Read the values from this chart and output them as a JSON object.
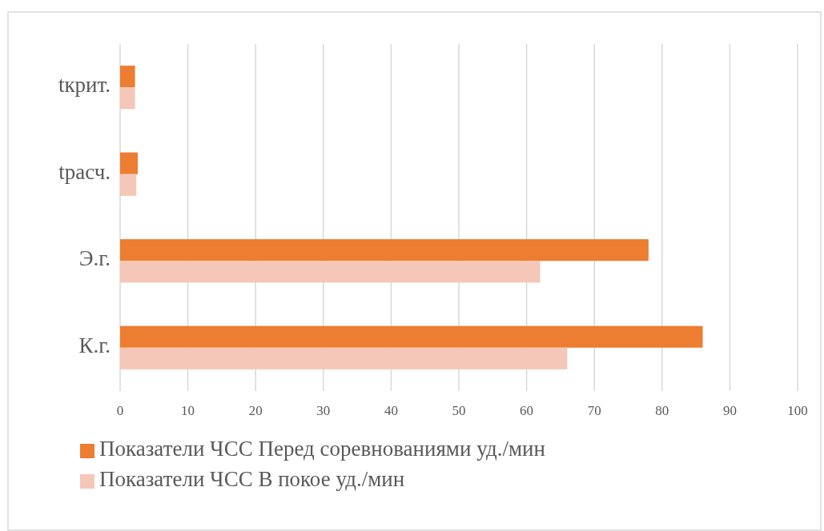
{
  "chart_data": {
    "type": "bar",
    "orientation": "horizontal",
    "categories": [
      "tкрит.",
      "tрасч.",
      "Э.г.",
      "К.г."
    ],
    "series": [
      {
        "name": "Показатели ЧСС Перед соревнованиями уд./мин",
        "color": "#ed7d31",
        "values": [
          2.2,
          2.6,
          78,
          86
        ]
      },
      {
        "name": "Показатели ЧСС В покое уд./мин",
        "color": "#f4c7b8",
        "values": [
          2.2,
          2.4,
          62,
          66
        ]
      }
    ],
    "xlim": [
      0,
      100
    ],
    "xticks": [
      0,
      10,
      20,
      30,
      40,
      50,
      60,
      70,
      80,
      90,
      100
    ],
    "grid": "x",
    "legend": "bottom"
  }
}
